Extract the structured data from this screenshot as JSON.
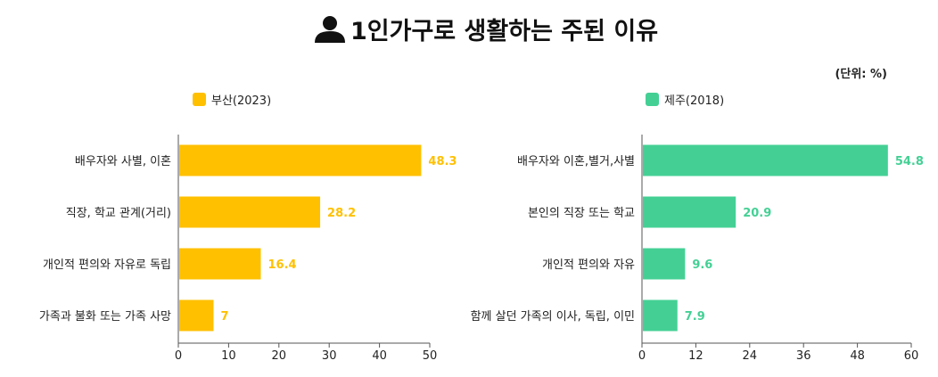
{
  "title": "1인가구로 생활하는 주된 이유",
  "title_icon": "user-icon",
  "unit_label": "(단위: %)",
  "chart_data": [
    {
      "type": "bar",
      "orientation": "horizontal",
      "legend": "부산(2023)",
      "color": "#FFC000",
      "categories": [
        "배우자와 사별, 이혼",
        "직장, 학교 관계(거리)",
        "개인적 편의와 자유로 독립",
        "가족과 불화 또는 가족 사망"
      ],
      "values": [
        48.3,
        28.2,
        16.4,
        7
      ],
      "value_labels": [
        "48.3",
        "28.2",
        "16.4",
        "7"
      ],
      "xlim": [
        0,
        50
      ],
      "xticks": [
        0,
        10,
        20,
        30,
        40,
        50
      ],
      "legend_position": "top-left",
      "grid": false
    },
    {
      "type": "bar",
      "orientation": "horizontal",
      "legend": "제주(2018)",
      "color": "#44D095",
      "categories": [
        "배우자와 이혼,별거,사별",
        "본인의 직장 또는 학교",
        "개인적 편의와 자유",
        "함께 살던 가족의 이사, 독립, 이민"
      ],
      "values": [
        54.8,
        20.9,
        9.6,
        7.9
      ],
      "value_labels": [
        "54.8",
        "20.9",
        "9.6",
        "7.9"
      ],
      "xlim": [
        0,
        60
      ],
      "xticks": [
        0,
        12,
        24,
        36,
        48,
        60
      ],
      "legend_position": "top-left",
      "grid": false
    }
  ]
}
